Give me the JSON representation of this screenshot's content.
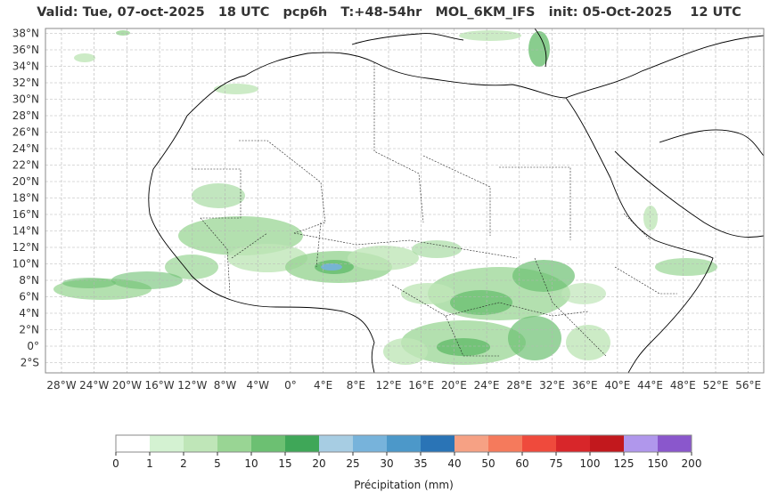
{
  "title": "Valid: Tue, 07-oct-2025   18 UTC   pcp6h   T:+48-54hr   MOL_6KM_IFS   init: 05-Oct-2025    12 UTC",
  "map": {
    "lat_labels": [
      "38°N",
      "36°N",
      "34°N",
      "32°N",
      "30°N",
      "28°N",
      "26°N",
      "24°N",
      "22°N",
      "20°N",
      "18°N",
      "16°N",
      "14°N",
      "12°N",
      "10°N",
      "8°N",
      "6°N",
      "4°N",
      "2°N",
      "0°",
      "2°S"
    ],
    "lon_labels": [
      "28°W",
      "24°W",
      "20°W",
      "16°W",
      "12°W",
      "8°W",
      "4°W",
      "0°",
      "4°E",
      "8°E",
      "12°E",
      "16°E",
      "20°E",
      "24°E",
      "28°E",
      "32°E",
      "36°E",
      "40°E",
      "44°E",
      "48°E",
      "52°E",
      "56°E"
    ],
    "grid": true
  },
  "colorbar": {
    "label": "Précipitation (mm)",
    "ticks": [
      "0",
      "1",
      "2",
      "5",
      "10",
      "15",
      "20",
      "25",
      "30",
      "35",
      "40",
      "50",
      "60",
      "75",
      "100",
      "125",
      "150",
      "200"
    ],
    "colors": [
      "#ffffff",
      "#d4f2d2",
      "#bfe6b8",
      "#99d594",
      "#6cc072",
      "#3fa758",
      "#a7cde3",
      "#77b3db",
      "#4c98c9",
      "#2a74b6",
      "#f6a184",
      "#f57a5c",
      "#ef4a3c",
      "#d8262a",
      "#c2181d",
      "#b097ec",
      "#8a57cc"
    ]
  },
  "legend_entries": []
}
